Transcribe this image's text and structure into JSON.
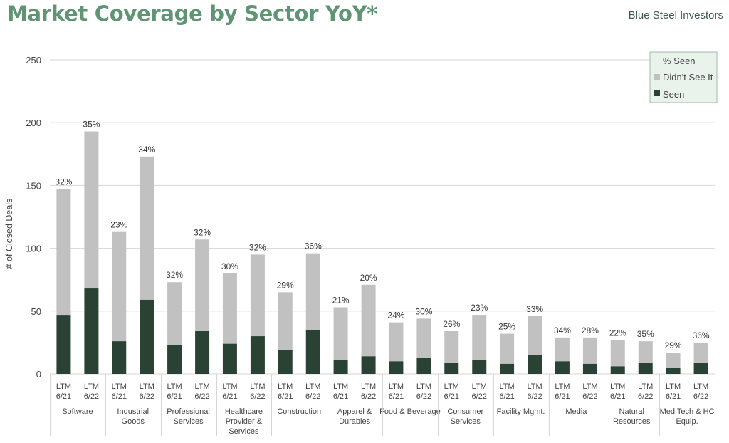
{
  "header": {
    "title": "Market Coverage by Sector YoY*",
    "brand": "Blue Steel Investors"
  },
  "colors": {
    "title": "#5f9474",
    "seen": "#2a4234",
    "not_seen": "#c1c1c1",
    "legend_bg": "#eaf2ec",
    "legend_border": "#9dbda9",
    "grid": "#d6d6d6",
    "text": "#444444"
  },
  "chart_data": {
    "type": "bar",
    "stacked": true,
    "ylabel": "# of Closed Deals",
    "ylim": [
      0,
      250
    ],
    "yticks": [
      0,
      50,
      100,
      150,
      200,
      250
    ],
    "grid": true,
    "legend": {
      "placement": "top-right",
      "title": "% Seen",
      "entries": [
        "Didn't See It",
        "Seen"
      ]
    },
    "groups": [
      {
        "name": "Software",
        "bars": [
          {
            "label": [
              "LTM",
              "6/21"
            ],
            "seen": 47,
            "total": 147,
            "pct": "32%"
          },
          {
            "label": [
              "LTM",
              "6/22"
            ],
            "seen": 68,
            "total": 193,
            "pct": "35%"
          }
        ]
      },
      {
        "name": "Industrial Goods",
        "bars": [
          {
            "label": [
              "LTM",
              "6/21"
            ],
            "seen": 26,
            "total": 113,
            "pct": "23%"
          },
          {
            "label": [
              "LTM",
              "6/22"
            ],
            "seen": 59,
            "total": 173,
            "pct": "34%"
          }
        ]
      },
      {
        "name": "Professional Services",
        "bars": [
          {
            "label": [
              "LTM",
              "6/21"
            ],
            "seen": 23,
            "total": 73,
            "pct": "32%"
          },
          {
            "label": [
              "LTM",
              "6/22"
            ],
            "seen": 34,
            "total": 107,
            "pct": "32%"
          }
        ]
      },
      {
        "name": "Healthcare Provider & Services",
        "bars": [
          {
            "label": [
              "LTM",
              "6/21"
            ],
            "seen": 24,
            "total": 80,
            "pct": "30%"
          },
          {
            "label": [
              "LTM",
              "6/22"
            ],
            "seen": 30,
            "total": 95,
            "pct": "32%"
          }
        ]
      },
      {
        "name": "Construction",
        "bars": [
          {
            "label": [
              "LTM",
              "6/21"
            ],
            "seen": 19,
            "total": 65,
            "pct": "29%"
          },
          {
            "label": [
              "LTM",
              "6/22"
            ],
            "seen": 35,
            "total": 96,
            "pct": "36%"
          }
        ]
      },
      {
        "name": "Apparel & Durables",
        "bars": [
          {
            "label": [
              "LTM",
              "6/21"
            ],
            "seen": 11,
            "total": 53,
            "pct": "21%"
          },
          {
            "label": [
              "LTM",
              "6/22"
            ],
            "seen": 14,
            "total": 71,
            "pct": "20%"
          }
        ]
      },
      {
        "name": "Food & Beverage",
        "bars": [
          {
            "label": [
              "LTM",
              "6/21"
            ],
            "seen": 10,
            "total": 41,
            "pct": "24%"
          },
          {
            "label": [
              "LTM",
              "6/22"
            ],
            "seen": 13,
            "total": 44,
            "pct": "30%"
          }
        ]
      },
      {
        "name": "Consumer Services",
        "bars": [
          {
            "label": [
              "LTM",
              "6/21"
            ],
            "seen": 9,
            "total": 34,
            "pct": "26%"
          },
          {
            "label": [
              "LTM",
              "6/22"
            ],
            "seen": 11,
            "total": 47,
            "pct": "23%"
          }
        ]
      },
      {
        "name": "Facility Mgmt.",
        "bars": [
          {
            "label": [
              "LTM",
              "6/21"
            ],
            "seen": 8,
            "total": 32,
            "pct": "25%"
          },
          {
            "label": [
              "LTM",
              "6/22"
            ],
            "seen": 15,
            "total": 46,
            "pct": "33%"
          }
        ]
      },
      {
        "name": "Media",
        "bars": [
          {
            "label": [
              "LTM",
              "6/21"
            ],
            "seen": 10,
            "total": 29,
            "pct": "34%"
          },
          {
            "label": [
              "LTM",
              "6/22"
            ],
            "seen": 8,
            "total": 29,
            "pct": "28%"
          }
        ]
      },
      {
        "name": "Natural Resources",
        "bars": [
          {
            "label": [
              "LTM",
              "6/21"
            ],
            "seen": 6,
            "total": 27,
            "pct": "22%"
          },
          {
            "label": [
              "LTM",
              "6/22"
            ],
            "seen": 9,
            "total": 26,
            "pct": "35%"
          }
        ]
      },
      {
        "name": "Med Tech & HC Equip.",
        "bars": [
          {
            "label": [
              "LTM",
              "6/21"
            ],
            "seen": 5,
            "total": 17,
            "pct": "29%"
          },
          {
            "label": [
              "LTM",
              "6/22"
            ],
            "seen": 9,
            "total": 25,
            "pct": "36%"
          }
        ]
      }
    ]
  }
}
